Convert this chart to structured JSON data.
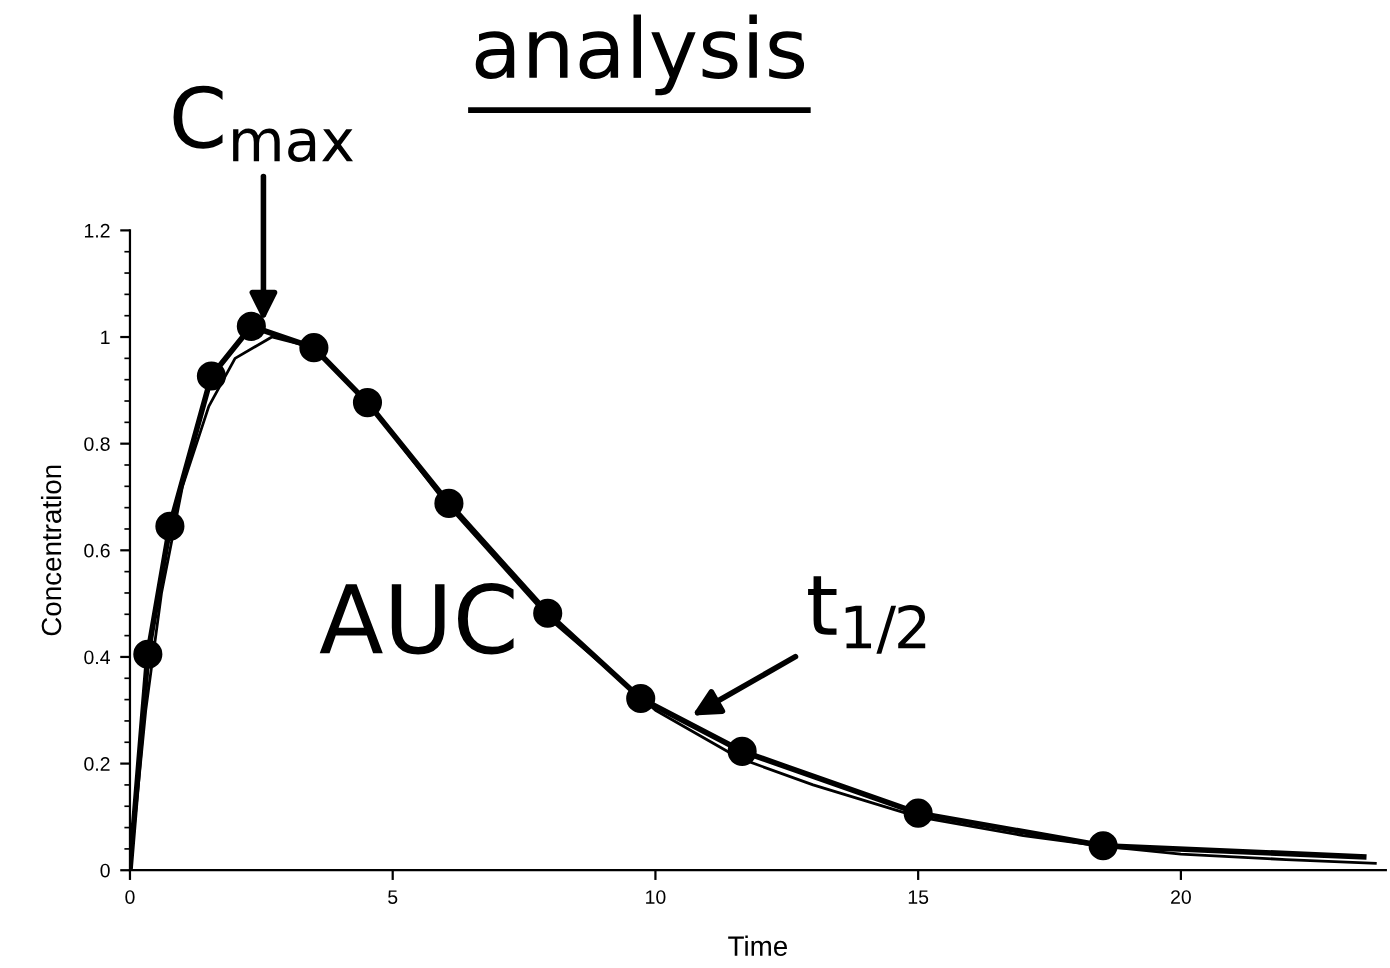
{
  "chart_data": {
    "type": "line",
    "title": "analysis",
    "xlabel": "Time",
    "ylabel": "Concentration",
    "series": [
      {
        "color": "#000000",
        "marker": "none",
        "line_style": "solid",
        "x": [
          0,
          0.34,
          0.76,
          1.55,
          2.31,
          3.5,
          4.52,
          6.07,
          7.95,
          9.72,
          11.65,
          15.0,
          18.52,
          23.48
        ],
        "values": [
          0,
          0.405,
          0.645,
          0.927,
          1.02,
          0.98,
          0.877,
          0.688,
          0.482,
          0.322,
          0.223,
          0.107,
          0.046,
          0.025
        ]
      },
      {
        "type": "scatter",
        "color": "#000000",
        "marker": "circle",
        "x": [
          0.34,
          0.76,
          1.55,
          2.31,
          3.5,
          4.52,
          6.07,
          7.95,
          9.72,
          11.65,
          15.0,
          18.52
        ],
        "values": [
          0.405,
          0.645,
          0.927,
          1.02,
          0.98,
          0.877,
          0.688,
          0.482,
          0.322,
          0.223,
          0.107,
          0.046
        ]
      },
      {
        "color": "#000000",
        "marker": "none",
        "line_style": "solid",
        "x": [
          0,
          0.3,
          0.6,
          1.0,
          1.5,
          2.0,
          2.7,
          3.5,
          4.5,
          6.0,
          8.0,
          10.0,
          11.6,
          13.0,
          15.0,
          17.0,
          18.5,
          20.0,
          22.0,
          23.7
        ],
        "values": [
          0,
          0.3,
          0.52,
          0.72,
          0.87,
          0.96,
          1.0,
          0.98,
          0.88,
          0.69,
          0.47,
          0.3,
          0.21,
          0.16,
          0.1,
          0.065,
          0.045,
          0.03,
          0.02,
          0.013
        ]
      }
    ],
    "annotations": [
      {
        "text": "C$_{max}$",
        "x": 2.54,
        "y": 1.03
      },
      {
        "text": "t$_{1/2}$",
        "x": 10.7,
        "y": 0.29
      },
      "AUC"
    ],
    "xlim": [
      0,
      23.9
    ],
    "ylim": [
      0,
      1.2
    ],
    "xticks": [
      0,
      5,
      10,
      15,
      20
    ],
    "yticks": [
      0,
      0.2,
      0.4,
      0.6,
      0.8,
      1,
      1.2
    ],
    "grid": false
  }
}
